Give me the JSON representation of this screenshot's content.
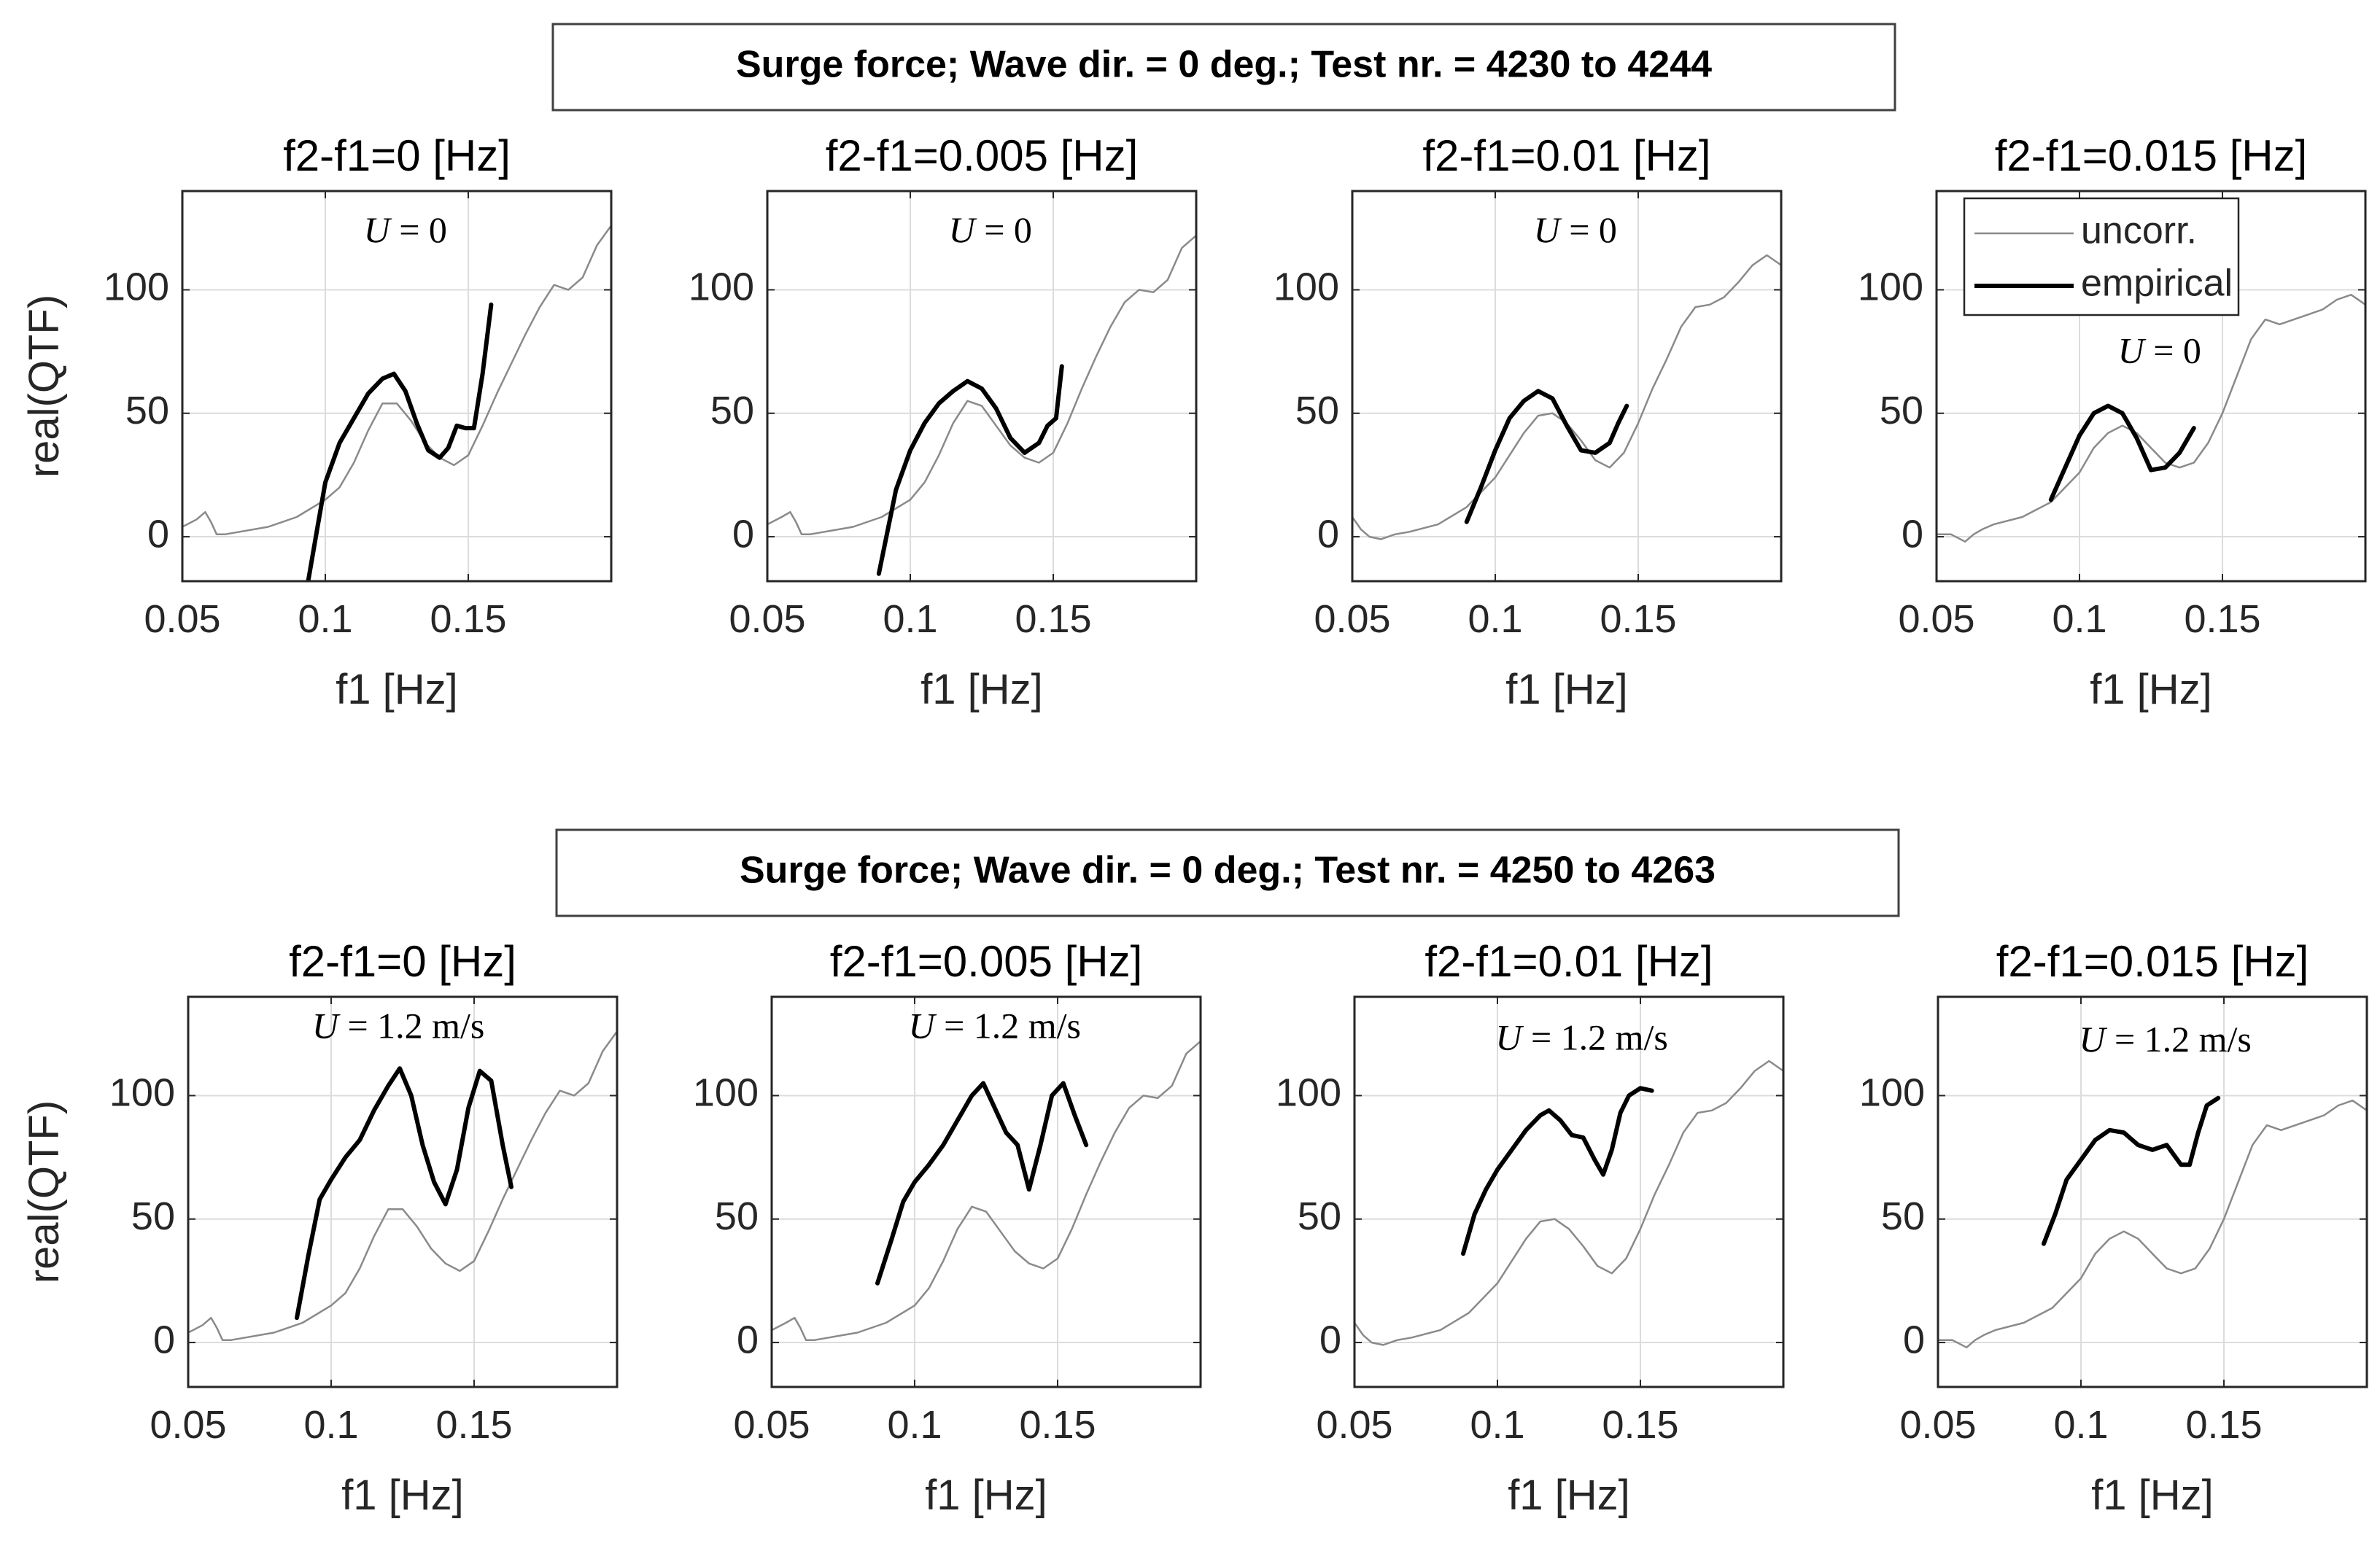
{
  "groups": [
    {
      "title": "Surge force;  Wave dir. = 0 deg.;  Test nr. = 4230 to 4244"
    },
    {
      "title": "Surge force;  Wave dir. = 0 deg.;  Test nr. = 4250 to 4263"
    }
  ],
  "legend": {
    "entries": [
      "uncorr.",
      "empirical"
    ]
  },
  "colors": {
    "uncorr": "#8a8a8a",
    "empirical": "#000000",
    "grid": "#dcdcdc",
    "axis": "#262626"
  },
  "chart_data": [
    {
      "type": "line",
      "group": 0,
      "title": "f2-f1=0 [Hz]",
      "annotation": "U = 0",
      "xlabel": "f1 [Hz]",
      "ylabel": "real(QTF)",
      "xlim": [
        0.05,
        0.2
      ],
      "ylim": [
        -18,
        140
      ],
      "xticks": [
        0.05,
        0.1,
        0.15
      ],
      "xtick_labels": [
        "0.05",
        "0.1",
        "0.15"
      ],
      "yticks": [
        0,
        50,
        100
      ],
      "ytick_labels": [
        "0",
        "50",
        "100"
      ],
      "series": [
        {
          "name": "uncorr.",
          "x": [
            0.05,
            0.055,
            0.058,
            0.06,
            0.062,
            0.065,
            0.07,
            0.08,
            0.09,
            0.1,
            0.105,
            0.11,
            0.115,
            0.12,
            0.125,
            0.13,
            0.135,
            0.14,
            0.145,
            0.15,
            0.155,
            0.16,
            0.165,
            0.17,
            0.175,
            0.18,
            0.185,
            0.19,
            0.195,
            0.2
          ],
          "y": [
            4,
            7,
            10,
            6,
            1,
            1,
            2,
            4,
            8,
            15,
            20,
            30,
            43,
            54,
            54,
            47,
            38,
            32,
            29,
            33,
            45,
            58,
            70,
            82,
            93,
            102,
            100,
            105,
            118,
            126
          ]
        },
        {
          "name": "empirical",
          "x": [
            0.094,
            0.097,
            0.1,
            0.105,
            0.11,
            0.115,
            0.12,
            0.124,
            0.128,
            0.132,
            0.136,
            0.14,
            0.143,
            0.146,
            0.149,
            0.152,
            0.155,
            0.158
          ],
          "y": [
            -18,
            2,
            22,
            38,
            48,
            58,
            64,
            66,
            59,
            46,
            35,
            32,
            36,
            45,
            44,
            44,
            66,
            94
          ]
        }
      ]
    },
    {
      "type": "line",
      "group": 0,
      "title": "f2-f1=0.005 [Hz]",
      "annotation": "U = 0",
      "xlabel": "f1 [Hz]",
      "ylabel": "",
      "xlim": [
        0.05,
        0.2
      ],
      "ylim": [
        -18,
        140
      ],
      "xticks": [
        0.05,
        0.1,
        0.15
      ],
      "xtick_labels": [
        "0.05",
        "0.1",
        "0.15"
      ],
      "yticks": [
        0,
        50,
        100
      ],
      "ytick_labels": [
        "0",
        "50",
        "100"
      ],
      "series": [
        {
          "name": "uncorr.",
          "x": [
            0.05,
            0.055,
            0.058,
            0.06,
            0.062,
            0.065,
            0.07,
            0.08,
            0.09,
            0.1,
            0.105,
            0.11,
            0.115,
            0.12,
            0.125,
            0.13,
            0.135,
            0.14,
            0.145,
            0.15,
            0.155,
            0.16,
            0.165,
            0.17,
            0.175,
            0.18,
            0.185,
            0.19,
            0.195,
            0.2
          ],
          "y": [
            5,
            8,
            10,
            6,
            1,
            1,
            2,
            4,
            8,
            15,
            22,
            33,
            46,
            55,
            53,
            45,
            37,
            32,
            30,
            34,
            46,
            60,
            73,
            85,
            95,
            100,
            99,
            104,
            117,
            122
          ]
        },
        {
          "name": "empirical",
          "x": [
            0.089,
            0.092,
            0.095,
            0.1,
            0.105,
            0.11,
            0.115,
            0.12,
            0.125,
            0.13,
            0.135,
            0.14,
            0.145,
            0.148,
            0.151,
            0.153
          ],
          "y": [
            -15,
            2,
            19,
            35,
            46,
            54,
            59,
            63,
            60,
            52,
            40,
            34,
            38,
            45,
            48,
            69
          ]
        }
      ]
    },
    {
      "type": "line",
      "group": 0,
      "title": "f2-f1=0.01 [Hz]",
      "annotation": "U = 0",
      "xlabel": "f1 [Hz]",
      "ylabel": "",
      "xlim": [
        0.05,
        0.2
      ],
      "ylim": [
        -18,
        140
      ],
      "xticks": [
        0.05,
        0.1,
        0.15
      ],
      "xtick_labels": [
        "0.05",
        "0.1",
        "0.15"
      ],
      "yticks": [
        0,
        50,
        100
      ],
      "ytick_labels": [
        "0",
        "50",
        "100"
      ],
      "series": [
        {
          "name": "uncorr.",
          "x": [
            0.05,
            0.053,
            0.056,
            0.06,
            0.065,
            0.07,
            0.08,
            0.09,
            0.1,
            0.105,
            0.11,
            0.115,
            0.12,
            0.125,
            0.13,
            0.135,
            0.14,
            0.145,
            0.15,
            0.155,
            0.16,
            0.165,
            0.17,
            0.175,
            0.18,
            0.185,
            0.19,
            0.195,
            0.2
          ],
          "y": [
            8,
            3,
            0,
            -1,
            1,
            2,
            5,
            12,
            24,
            33,
            42,
            49,
            50,
            46,
            39,
            31,
            28,
            34,
            46,
            60,
            72,
            85,
            93,
            94,
            97,
            103,
            110,
            114,
            110
          ]
        },
        {
          "name": "empirical",
          "x": [
            0.09,
            0.095,
            0.1,
            0.105,
            0.11,
            0.115,
            0.12,
            0.125,
            0.13,
            0.135,
            0.14,
            0.143,
            0.146
          ],
          "y": [
            6,
            20,
            35,
            48,
            55,
            59,
            56,
            45,
            35,
            34,
            38,
            46,
            53
          ]
        }
      ]
    },
    {
      "type": "line",
      "group": 0,
      "title": "f2-f1=0.015 [Hz]",
      "annotation": "U = 0",
      "xlabel": "f1 [Hz]",
      "ylabel": "",
      "xlim": [
        0.05,
        0.2
      ],
      "ylim": [
        -18,
        140
      ],
      "xticks": [
        0.05,
        0.1,
        0.15
      ],
      "xtick_labels": [
        "0.05",
        "0.1",
        "0.15"
      ],
      "yticks": [
        0,
        50,
        100
      ],
      "ytick_labels": [
        "0",
        "50",
        "100"
      ],
      "series": [
        {
          "name": "uncorr.",
          "x": [
            0.05,
            0.055,
            0.06,
            0.063,
            0.066,
            0.07,
            0.08,
            0.09,
            0.1,
            0.105,
            0.11,
            0.115,
            0.12,
            0.125,
            0.13,
            0.135,
            0.14,
            0.145,
            0.15,
            0.155,
            0.16,
            0.165,
            0.17,
            0.175,
            0.18,
            0.185,
            0.19,
            0.195,
            0.2
          ],
          "y": [
            1,
            1,
            -2,
            1,
            3,
            5,
            8,
            14,
            26,
            36,
            42,
            45,
            42,
            36,
            30,
            28,
            30,
            38,
            50,
            65,
            80,
            88,
            86,
            88,
            90,
            92,
            96,
            98,
            94
          ]
        },
        {
          "name": "empirical",
          "x": [
            0.09,
            0.095,
            0.1,
            0.105,
            0.11,
            0.115,
            0.12,
            0.125,
            0.13,
            0.135,
            0.14
          ],
          "y": [
            15,
            28,
            41,
            50,
            53,
            50,
            40,
            27,
            28,
            34,
            44
          ]
        }
      ]
    },
    {
      "type": "line",
      "group": 1,
      "title": "f2-f1=0 [Hz]",
      "annotation": "U = 1.2 m/s",
      "xlabel": "f1 [Hz]",
      "ylabel": "real(QTF)",
      "xlim": [
        0.05,
        0.2
      ],
      "ylim": [
        -18,
        140
      ],
      "xticks": [
        0.05,
        0.1,
        0.15
      ],
      "xtick_labels": [
        "0.05",
        "0.1",
        "0.15"
      ],
      "yticks": [
        0,
        50,
        100
      ],
      "ytick_labels": [
        "0",
        "50",
        "100"
      ],
      "series": [
        {
          "name": "uncorr.",
          "x": [
            0.05,
            0.055,
            0.058,
            0.06,
            0.062,
            0.065,
            0.07,
            0.08,
            0.09,
            0.1,
            0.105,
            0.11,
            0.115,
            0.12,
            0.125,
            0.13,
            0.135,
            0.14,
            0.145,
            0.15,
            0.155,
            0.16,
            0.165,
            0.17,
            0.175,
            0.18,
            0.185,
            0.19,
            0.195,
            0.2
          ],
          "y": [
            4,
            7,
            10,
            6,
            1,
            1,
            2,
            4,
            8,
            15,
            20,
            30,
            43,
            54,
            54,
            47,
            38,
            32,
            29,
            33,
            45,
            58,
            70,
            82,
            93,
            102,
            100,
            105,
            118,
            126
          ]
        },
        {
          "name": "empirical",
          "x": [
            0.088,
            0.092,
            0.096,
            0.1,
            0.105,
            0.11,
            0.115,
            0.12,
            0.124,
            0.128,
            0.132,
            0.136,
            0.14,
            0.144,
            0.148,
            0.152,
            0.156,
            0.16,
            0.163
          ],
          "y": [
            10,
            35,
            58,
            66,
            75,
            82,
            94,
            104,
            111,
            100,
            80,
            65,
            56,
            70,
            95,
            110,
            106,
            80,
            63
          ]
        }
      ]
    },
    {
      "type": "line",
      "group": 1,
      "title": "f2-f1=0.005 [Hz]",
      "annotation": "U = 1.2 m/s",
      "xlabel": "f1 [Hz]",
      "ylabel": "",
      "xlim": [
        0.05,
        0.2
      ],
      "ylim": [
        -18,
        140
      ],
      "xticks": [
        0.05,
        0.1,
        0.15
      ],
      "xtick_labels": [
        "0.05",
        "0.1",
        "0.15"
      ],
      "yticks": [
        0,
        50,
        100
      ],
      "ytick_labels": [
        "0",
        "50",
        "100"
      ],
      "series": [
        {
          "name": "uncorr.",
          "x": [
            0.05,
            0.055,
            0.058,
            0.06,
            0.062,
            0.065,
            0.07,
            0.08,
            0.09,
            0.1,
            0.105,
            0.11,
            0.115,
            0.12,
            0.125,
            0.13,
            0.135,
            0.14,
            0.145,
            0.15,
            0.155,
            0.16,
            0.165,
            0.17,
            0.175,
            0.18,
            0.185,
            0.19,
            0.195,
            0.2
          ],
          "y": [
            5,
            8,
            10,
            6,
            1,
            1,
            2,
            4,
            8,
            15,
            22,
            33,
            46,
            55,
            53,
            45,
            37,
            32,
            30,
            34,
            46,
            60,
            73,
            85,
            95,
            100,
            99,
            104,
            117,
            122
          ]
        },
        {
          "name": "empirical",
          "x": [
            0.087,
            0.092,
            0.096,
            0.1,
            0.105,
            0.11,
            0.115,
            0.12,
            0.124,
            0.128,
            0.132,
            0.136,
            0.14,
            0.144,
            0.148,
            0.152,
            0.156,
            0.16
          ],
          "y": [
            24,
            42,
            57,
            65,
            72,
            80,
            90,
            100,
            105,
            95,
            85,
            80,
            62,
            80,
            100,
            105,
            92,
            80
          ]
        }
      ]
    },
    {
      "type": "line",
      "group": 1,
      "title": "f2-f1=0.01 [Hz]",
      "annotation": "U = 1.2 m/s",
      "xlabel": "f1 [Hz]",
      "ylabel": "",
      "xlim": [
        0.05,
        0.2
      ],
      "ylim": [
        -18,
        140
      ],
      "xticks": [
        0.05,
        0.1,
        0.15
      ],
      "xtick_labels": [
        "0.05",
        "0.1",
        "0.15"
      ],
      "yticks": [
        0,
        50,
        100
      ],
      "ytick_labels": [
        "0",
        "50",
        "100"
      ],
      "series": [
        {
          "name": "uncorr.",
          "x": [
            0.05,
            0.053,
            0.056,
            0.06,
            0.065,
            0.07,
            0.08,
            0.09,
            0.1,
            0.105,
            0.11,
            0.115,
            0.12,
            0.125,
            0.13,
            0.135,
            0.14,
            0.145,
            0.15,
            0.155,
            0.16,
            0.165,
            0.17,
            0.175,
            0.18,
            0.185,
            0.19,
            0.195,
            0.2
          ],
          "y": [
            8,
            3,
            0,
            -1,
            1,
            2,
            5,
            12,
            24,
            33,
            42,
            49,
            50,
            46,
            39,
            31,
            28,
            34,
            46,
            60,
            72,
            85,
            93,
            94,
            97,
            103,
            110,
            114,
            110
          ]
        },
        {
          "name": "empirical",
          "x": [
            0.088,
            0.092,
            0.096,
            0.1,
            0.105,
            0.11,
            0.115,
            0.118,
            0.122,
            0.126,
            0.13,
            0.134,
            0.137,
            0.14,
            0.143,
            0.146,
            0.15,
            0.154
          ],
          "y": [
            36,
            52,
            62,
            70,
            78,
            86,
            92,
            94,
            90,
            84,
            83,
            74,
            68,
            78,
            93,
            100,
            103,
            102
          ]
        }
      ]
    },
    {
      "type": "line",
      "group": 1,
      "title": "f2-f1=0.015 [Hz]",
      "annotation": "U = 1.2 m/s",
      "xlabel": "f1 [Hz]",
      "ylabel": "",
      "xlim": [
        0.05,
        0.2
      ],
      "ylim": [
        -18,
        140
      ],
      "xticks": [
        0.05,
        0.1,
        0.15
      ],
      "xtick_labels": [
        "0.05",
        "0.1",
        "0.15"
      ],
      "yticks": [
        0,
        50,
        100
      ],
      "ytick_labels": [
        "0",
        "50",
        "100"
      ],
      "series": [
        {
          "name": "uncorr.",
          "x": [
            0.05,
            0.055,
            0.06,
            0.063,
            0.066,
            0.07,
            0.08,
            0.09,
            0.1,
            0.105,
            0.11,
            0.115,
            0.12,
            0.125,
            0.13,
            0.135,
            0.14,
            0.145,
            0.15,
            0.155,
            0.16,
            0.165,
            0.17,
            0.175,
            0.18,
            0.185,
            0.19,
            0.195,
            0.2
          ],
          "y": [
            1,
            1,
            -2,
            1,
            3,
            5,
            8,
            14,
            26,
            36,
            42,
            45,
            42,
            36,
            30,
            28,
            30,
            38,
            50,
            65,
            80,
            88,
            86,
            88,
            90,
            92,
            96,
            98,
            94
          ]
        },
        {
          "name": "empirical",
          "x": [
            0.087,
            0.091,
            0.095,
            0.1,
            0.105,
            0.11,
            0.115,
            0.12,
            0.125,
            0.13,
            0.135,
            0.138,
            0.141,
            0.144,
            0.148
          ],
          "y": [
            40,
            52,
            66,
            74,
            82,
            86,
            85,
            80,
            78,
            80,
            72,
            72,
            85,
            96,
            99
          ]
        }
      ]
    }
  ]
}
